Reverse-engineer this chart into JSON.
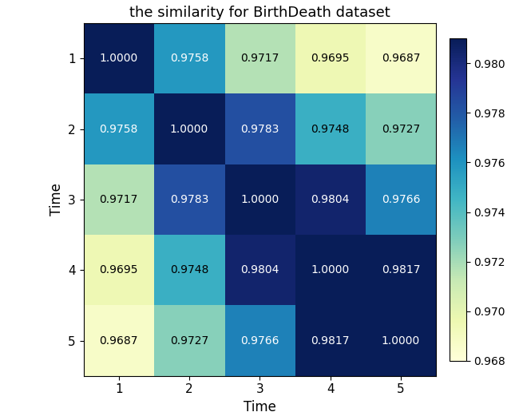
{
  "title": "the similarity for BirthDeath dataset",
  "xlabel": "Time",
  "ylabel": "Time",
  "matrix": [
    [
      1.0,
      0.9758,
      0.9717,
      0.9695,
      0.9687
    ],
    [
      0.9758,
      1.0,
      0.9783,
      0.9748,
      0.9727
    ],
    [
      0.9717,
      0.9783,
      1.0,
      0.9804,
      0.9766
    ],
    [
      0.9695,
      0.9748,
      0.9804,
      1.0,
      0.9817
    ],
    [
      0.9687,
      0.9727,
      0.9766,
      0.9817,
      1.0
    ]
  ],
  "tick_labels": [
    "1",
    "2",
    "3",
    "4",
    "5"
  ],
  "cmap": "YlGnBu",
  "vmin": 0.968,
  "vmax": 0.981,
  "text_color_threshold": 0.975,
  "title_fontsize": 13,
  "label_fontsize": 12,
  "tick_fontsize": 11,
  "annot_fontsize": 10,
  "cbar_tick_fontsize": 10,
  "figwidth": 6.4,
  "figheight": 5.26,
  "dpi": 100
}
